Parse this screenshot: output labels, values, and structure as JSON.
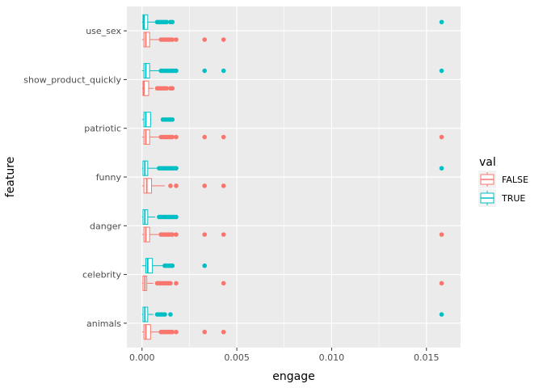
{
  "chart_data": {
    "type": "boxplot",
    "orientation": "horizontal",
    "title": "",
    "xlabel": "engage",
    "ylabel": "feature",
    "xlim": [
      -0.0008,
      0.0168
    ],
    "x_ticks": [
      0,
      0.005,
      0.01,
      0.015
    ],
    "x_tick_labels": [
      "0.000",
      "0.005",
      "0.010",
      "0.015"
    ],
    "grid": true,
    "legend": {
      "title": "val",
      "placement": "right",
      "entries": [
        {
          "label": "FALSE",
          "color": "#F8766D"
        },
        {
          "label": "TRUE",
          "color": "#00BFC4"
        }
      ]
    },
    "categories": [
      "animals",
      "celebrity",
      "danger",
      "funny",
      "patriotic",
      "show_product_quickly",
      "use_sex"
    ],
    "series": [
      {
        "name": "FALSE",
        "color": "#F8766D",
        "boxes": [
          {
            "min": 0.0,
            "q1": 0.0001,
            "median": 0.0002,
            "q3": 0.00045,
            "max": 0.0009,
            "outliers": [
              0.001,
              0.0011,
              0.0012,
              0.0013,
              0.0014,
              0.0015,
              0.0016,
              0.0018,
              0.0033,
              0.0043
            ]
          },
          {
            "min": 0.0,
            "q1": 5e-05,
            "median": 0.00015,
            "q3": 0.00025,
            "max": 0.0006,
            "outliers": [
              0.0008,
              0.0009,
              0.001,
              0.0011,
              0.0012,
              0.0013,
              0.0014,
              0.0015,
              0.0018,
              0.0043,
              0.0158
            ]
          },
          {
            "min": 0.0,
            "q1": 0.0001,
            "median": 0.0002,
            "q3": 0.0004,
            "max": 0.0009,
            "outliers": [
              0.001,
              0.0011,
              0.0012,
              0.0013,
              0.0014,
              0.0015,
              0.0016,
              0.0018,
              0.0033,
              0.0043,
              0.0158
            ]
          },
          {
            "min": 0.0,
            "q1": 0.0001,
            "median": 0.00025,
            "q3": 0.0005,
            "max": 0.0012,
            "outliers": [
              0.0015,
              0.0018,
              0.0033,
              0.0043
            ]
          },
          {
            "min": 0.0,
            "q1": 0.0001,
            "median": 0.0002,
            "q3": 0.0004,
            "max": 0.0009,
            "outliers": [
              0.001,
              0.0011,
              0.0012,
              0.0013,
              0.0014,
              0.0015,
              0.0016,
              0.0018,
              0.0033,
              0.0043,
              0.0158
            ]
          },
          {
            "min": 0.0,
            "q1": 5e-05,
            "median": 0.0001,
            "q3": 0.00035,
            "max": 0.0006,
            "outliers": [
              0.0008,
              0.0009,
              0.001,
              0.0011,
              0.0012,
              0.0013,
              0.0015,
              0.0016
            ]
          },
          {
            "min": 0.0,
            "q1": 0.0001,
            "median": 0.0002,
            "q3": 0.0004,
            "max": 0.0009,
            "outliers": [
              0.001,
              0.0011,
              0.0012,
              0.0013,
              0.0014,
              0.0015,
              0.0016,
              0.0018,
              0.0033,
              0.0043
            ]
          }
        ]
      },
      {
        "name": "TRUE",
        "color": "#00BFC4",
        "boxes": [
          {
            "min": 0.0,
            "q1": 5e-05,
            "median": 0.00015,
            "q3": 0.0003,
            "max": 0.0006,
            "outliers": [
              0.0008,
              0.0009,
              0.001,
              0.0011,
              0.0012,
              0.0015,
              0.0158
            ]
          },
          {
            "min": 0.0,
            "q1": 0.0002,
            "median": 0.0003,
            "q3": 0.00055,
            "max": 0.0011,
            "outliers": [
              0.0012,
              0.0013,
              0.0014,
              0.0015,
              0.0016,
              0.0033
            ]
          },
          {
            "min": 0.0,
            "q1": 5e-05,
            "median": 0.00015,
            "q3": 0.0003,
            "max": 0.0007,
            "outliers": [
              0.0009,
              0.001,
              0.0011,
              0.0012,
              0.0013,
              0.0014,
              0.0015,
              0.0016,
              0.0017,
              0.0018
            ]
          },
          {
            "min": 0.0,
            "q1": 5e-05,
            "median": 0.00015,
            "q3": 0.0003,
            "max": 0.0008,
            "outliers": [
              0.0009,
              0.001,
              0.0011,
              0.0012,
              0.0013,
              0.0014,
              0.0015,
              0.0016,
              0.0017,
              0.0018,
              0.0158
            ]
          },
          {
            "min": 0.0,
            "q1": 0.0001,
            "median": 0.0002,
            "q3": 0.00045,
            "max": 0.0005,
            "outliers": [
              0.0011,
              0.0012,
              0.0013,
              0.0014,
              0.0015,
              0.0016
            ]
          },
          {
            "min": 0.0,
            "q1": 0.0001,
            "median": 0.0002,
            "q3": 0.0004,
            "max": 0.0009,
            "outliers": [
              0.001,
              0.0011,
              0.0012,
              0.0013,
              0.0014,
              0.0015,
              0.0016,
              0.0017,
              0.0018,
              0.0033,
              0.0043,
              0.0158
            ]
          },
          {
            "min": 0.0,
            "q1": 5e-05,
            "median": 0.0001,
            "q3": 0.0003,
            "max": 0.0007,
            "outliers": [
              0.0008,
              0.0009,
              0.001,
              0.0011,
              0.0012,
              0.0013,
              0.0015,
              0.0016,
              0.0158
            ]
          }
        ]
      }
    ]
  }
}
